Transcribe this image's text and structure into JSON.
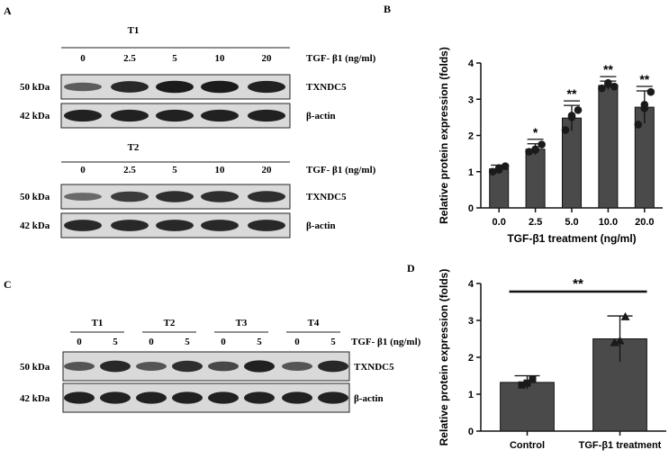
{
  "panels": {
    "A": {
      "label": "A",
      "blots": [
        {
          "title": "T1",
          "lanes": [
            "0",
            "2.5",
            "5",
            "10",
            "20"
          ],
          "treatment_label": "TGF- β1 (ng/ml)",
          "rows": [
            {
              "marker": "50 kDa",
              "protein": "TXNDC5",
              "intensity": [
                0.45,
                0.85,
                0.95,
                0.95,
                0.9
              ]
            },
            {
              "marker": "42 kDa",
              "protein": "β-actin",
              "intensity": [
                0.9,
                0.9,
                0.9,
                0.9,
                0.9
              ]
            }
          ]
        },
        {
          "title": "T2",
          "lanes": [
            "0",
            "2.5",
            "5",
            "10",
            "20"
          ],
          "treatment_label": "TGF- β1 (ng/ml)",
          "rows": [
            {
              "marker": "50 kDa",
              "protein": "TXNDC5",
              "intensity": [
                0.35,
                0.7,
                0.8,
                0.8,
                0.8
              ]
            },
            {
              "marker": "42 kDa",
              "protein": "β-actin",
              "intensity": [
                0.85,
                0.85,
                0.85,
                0.85,
                0.85
              ]
            }
          ]
        }
      ]
    },
    "C": {
      "label": "C",
      "groups": [
        "T1",
        "T2",
        "T3",
        "T4"
      ],
      "lanes": [
        "0",
        "5",
        "0",
        "5",
        "0",
        "5",
        "0",
        "5"
      ],
      "treatment_label": "TGF- β1 (ng/ml)",
      "rows": [
        {
          "marker": "50 kDa",
          "protein": "TXNDC5",
          "intensity": [
            0.5,
            0.85,
            0.5,
            0.8,
            0.6,
            0.9,
            0.5,
            0.85
          ]
        },
        {
          "marker": "42 kDa",
          "protein": "β-actin",
          "intensity": [
            0.9,
            0.9,
            0.9,
            0.9,
            0.9,
            0.9,
            0.9,
            0.9
          ]
        }
      ]
    }
  },
  "chart_data": [
    {
      "panel": "B",
      "type": "bar",
      "categories": [
        "0.0",
        "2.5",
        "5.0",
        "10.0",
        "20.0"
      ],
      "values": [
        1.08,
        1.62,
        2.48,
        3.38,
        2.78
      ],
      "error": [
        0.1,
        0.15,
        0.35,
        0.12,
        0.45
      ],
      "points": [
        [
          1.0,
          1.1,
          1.15,
          1.05
        ],
        [
          1.55,
          1.6,
          1.75,
          1.62
        ],
        [
          2.15,
          2.5,
          2.7,
          2.55
        ],
        [
          3.3,
          3.45,
          3.35,
          3.42
        ],
        [
          2.3,
          2.75,
          3.2,
          2.85
        ]
      ],
      "significance": [
        "",
        "*",
        "**",
        "**",
        "**"
      ],
      "xlabel": "TGF-β1 treatment (ng/ml)",
      "ylabel": "Relative protein expression (folds)",
      "ylim": [
        0,
        4
      ],
      "yticks": [
        "0",
        "1",
        "2",
        "3",
        "4"
      ],
      "bar_color": "#4a4a4a",
      "grid": false
    },
    {
      "panel": "D",
      "type": "bar",
      "categories": [
        "Control",
        "TGF-β1 treatment"
      ],
      "values": [
        1.32,
        2.5
      ],
      "error": [
        0.18,
        0.62
      ],
      "points": [
        [
          1.25,
          1.3,
          1.4
        ],
        [
          2.4,
          2.45,
          3.1
        ]
      ],
      "significance_bracket": "**",
      "xlabel": "",
      "ylabel": "Relative protein expression (folds)",
      "ylim": [
        0,
        4
      ],
      "yticks": [
        "0",
        "1",
        "2",
        "3",
        "4"
      ],
      "bar_color": "#4a4a4a",
      "grid": false
    }
  ],
  "labels": {
    "B": "B",
    "D": "D"
  }
}
